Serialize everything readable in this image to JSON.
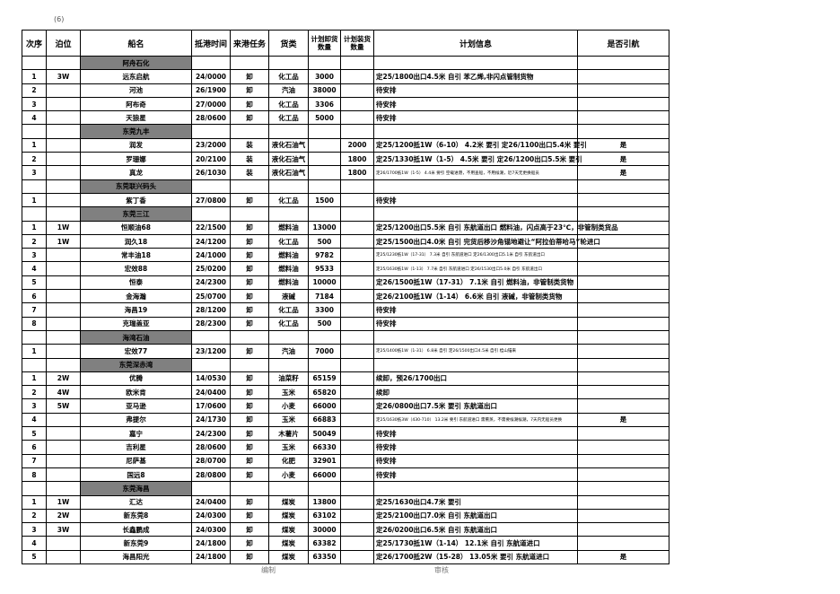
{
  "page_number": "(6)",
  "headers": [
    "次序",
    "泊位",
    "船名",
    "抵港时间",
    "来港任务",
    "货类",
    "计划卸货数量",
    "计划装货数量",
    "计划信息",
    "是否引航"
  ],
  "sections": [
    {
      "name": "阿舟石化",
      "rows": [
        [
          "1",
          "3W",
          "远东启航",
          "24/0000",
          "卸",
          "化工品",
          "3000",
          "",
          "定25/1800出口4.5米 自引  苯乙烯,非闪点管制货物",
          ""
        ],
        [
          "2",
          "",
          "河池",
          "26/1900",
          "卸",
          "汽油",
          "38000",
          "",
          " 待安排",
          ""
        ],
        [
          "3",
          "",
          "阿布奇",
          "27/0000",
          "卸",
          "化工品",
          "3306",
          "",
          " 待安排",
          ""
        ],
        [
          "4",
          "",
          "天狼星",
          "28/0600",
          "卸",
          "化工品",
          "5000",
          "",
          " 待安排",
          ""
        ]
      ]
    },
    {
      "name": "东莞九丰",
      "rows": [
        [
          "1",
          "",
          "润发",
          "23/2000",
          "装",
          "液化石油气",
          "",
          "2000",
          "定25/1200抵1W（6-10） 4.2米 要引 定26/1100出口5.4米 要引",
          "是"
        ],
        [
          "2",
          "",
          "罗珊娜",
          "20/2100",
          "装",
          "液化石油气",
          "",
          "1800",
          "定25/1330抵1W（1-5） 4.5米 要引 定26/1200出口5.5米 要引",
          "是"
        ],
        [
          "3",
          "",
          "真龙",
          "26/1030",
          "装",
          "液化石油气",
          "",
          "1800",
          "定26/1700抵1W（1-5） 4.4米 要引  空载进港，不用查船，不用候潮，近7天无更换船员",
          "是"
        ]
      ]
    },
    {
      "name": "东莞联兴码头",
      "rows": [
        [
          "1",
          "",
          "紫丁香",
          "27/0800",
          "卸",
          "化工品",
          "1500",
          "",
          " 待安排",
          ""
        ]
      ]
    },
    {
      "name": "东莞三江",
      "rows": [
        [
          "1",
          "1W",
          "恒顺油68",
          "22/1500",
          "卸",
          "燃料油",
          "13000",
          "",
          "定25/1200出口5.5米 自引 东航道出口  燃料油，闪点高于23℃，非管制类货品",
          ""
        ],
        [
          "2",
          "1W",
          "润久18",
          "24/1200",
          "卸",
          "化工品",
          "500",
          "",
          "定25/1500出口4.0米 自引  完货后移沙角锚地避让“阿拉伯蒂哈马”轮进口",
          ""
        ],
        [
          "3",
          "",
          "常丰油18",
          "24/1000",
          "卸",
          "燃料油",
          "9782",
          "",
          "定25/1230抵1W（17-31） 7.3米 自引 东航道进口 定26/1300出口5.1米 自引 东航道出口",
          ""
        ],
        [
          "4",
          "",
          "宏效88",
          "25/0200",
          "卸",
          "燃料油",
          "9533",
          "",
          "定25/1630抵1W（1-13） 7.7米 自引 东航道进口 定26/1530出口5.0米 自引 东航道出口",
          ""
        ],
        [
          "5",
          "",
          "恒泰",
          "24/2300",
          "卸",
          "燃料油",
          "10000",
          "",
          "定26/1500抵1W（17-31） 7.1米 自引  燃料油，非管制类货物",
          ""
        ],
        [
          "6",
          "",
          "金海瀚",
          "25/0700",
          "卸",
          "液碱",
          "7184",
          "",
          "定26/2100抵1W（1-14） 6.6米 自引  液碱，非管制类货物",
          ""
        ],
        [
          "7",
          "",
          "海昌19",
          "28/1200",
          "卸",
          "化工品",
          "3300",
          "",
          " 待安排",
          ""
        ],
        [
          "8",
          "",
          "克瑞盖亚",
          "28/2300",
          "卸",
          "化工品",
          "500",
          "",
          " 待安排",
          ""
        ]
      ]
    },
    {
      "name": "海湾石油",
      "rows": [
        [
          "1",
          "",
          "宏效77",
          "23/1200",
          "卸",
          "汽油",
          "7000",
          "",
          "定25/1400抵1W（1-31） 6.8米 自引 定26/1500出口4.5米 自引  桂山锚来",
          ""
        ]
      ]
    },
    {
      "name": "东莞深赤湾",
      "rows": [
        [
          "1",
          "2W",
          "优腾",
          "14/0530",
          "卸",
          "油菜籽",
          "65159",
          "",
          " 续卸，预26/1700出口",
          ""
        ],
        [
          "2",
          "4W",
          "欧米肯",
          "24/0400",
          "卸",
          "玉米",
          "65820",
          "",
          " 续卸",
          ""
        ],
        [
          "3",
          "5W",
          "亚马逊",
          "17/0600",
          "卸",
          "小麦",
          "66000",
          "",
          "定26/0800出口7.5米 要引 东航道出口",
          ""
        ],
        [
          "4",
          "",
          "弗提尔",
          "24/1730",
          "卸",
          "玉米",
          "66883",
          "",
          "定25/1630抵3W（430-710） 13.2米 要引 东航道进口  需熏蒸，不需要候潮候潮，7天内无船员更换",
          "是"
        ],
        [
          "5",
          "",
          "嘉宁",
          "24/2300",
          "卸",
          "木薯片",
          "50049",
          "",
          " 待安排",
          ""
        ],
        [
          "6",
          "",
          "吉利星",
          "28/0600",
          "卸",
          "玉米",
          "66330",
          "",
          " 待安排",
          ""
        ],
        [
          "7",
          "",
          "尼萨基",
          "28/0700",
          "卸",
          "化肥",
          "32901",
          "",
          " 待安排",
          ""
        ],
        [
          "8",
          "",
          "国远8",
          "28/0800",
          "卸",
          "小麦",
          "66000",
          "",
          " 待安排",
          ""
        ]
      ]
    },
    {
      "name": "东莞海昌",
      "rows": [
        [
          "1",
          "1W",
          "汇达",
          "24/0400",
          "卸",
          "煤炭",
          "13800",
          "",
          "定25/1630出口4.7米 要引",
          ""
        ],
        [
          "2",
          "2W",
          "新东莞8",
          "24/0300",
          "卸",
          "煤炭",
          "63102",
          "",
          "定25/2100出口7.0米 自引 东航道出口",
          ""
        ],
        [
          "3",
          "3W",
          "长鑫鹏成",
          "24/0300",
          "卸",
          "煤炭",
          "30000",
          "",
          "定26/0200出口6.5米 自引 东航道出口",
          ""
        ],
        [
          "4",
          "",
          "新东莞9",
          "24/1800",
          "卸",
          "煤炭",
          "63382",
          "",
          "定25/1730抵1W（1-14） 12.1米 自引 东航道进口",
          ""
        ],
        [
          "5",
          "",
          "海昌阳光",
          "24/1800",
          "卸",
          "煤炭",
          "63350",
          "",
          "定26/1700抵2W（15-28） 13.05米 要引 东航道进口",
          "是"
        ]
      ]
    }
  ],
  "footer": {
    "prepared_by_label": "编制",
    "reviewed_by_label": "审核"
  },
  "colors": {
    "section_fill": "#808080",
    "grid": "#000000"
  }
}
